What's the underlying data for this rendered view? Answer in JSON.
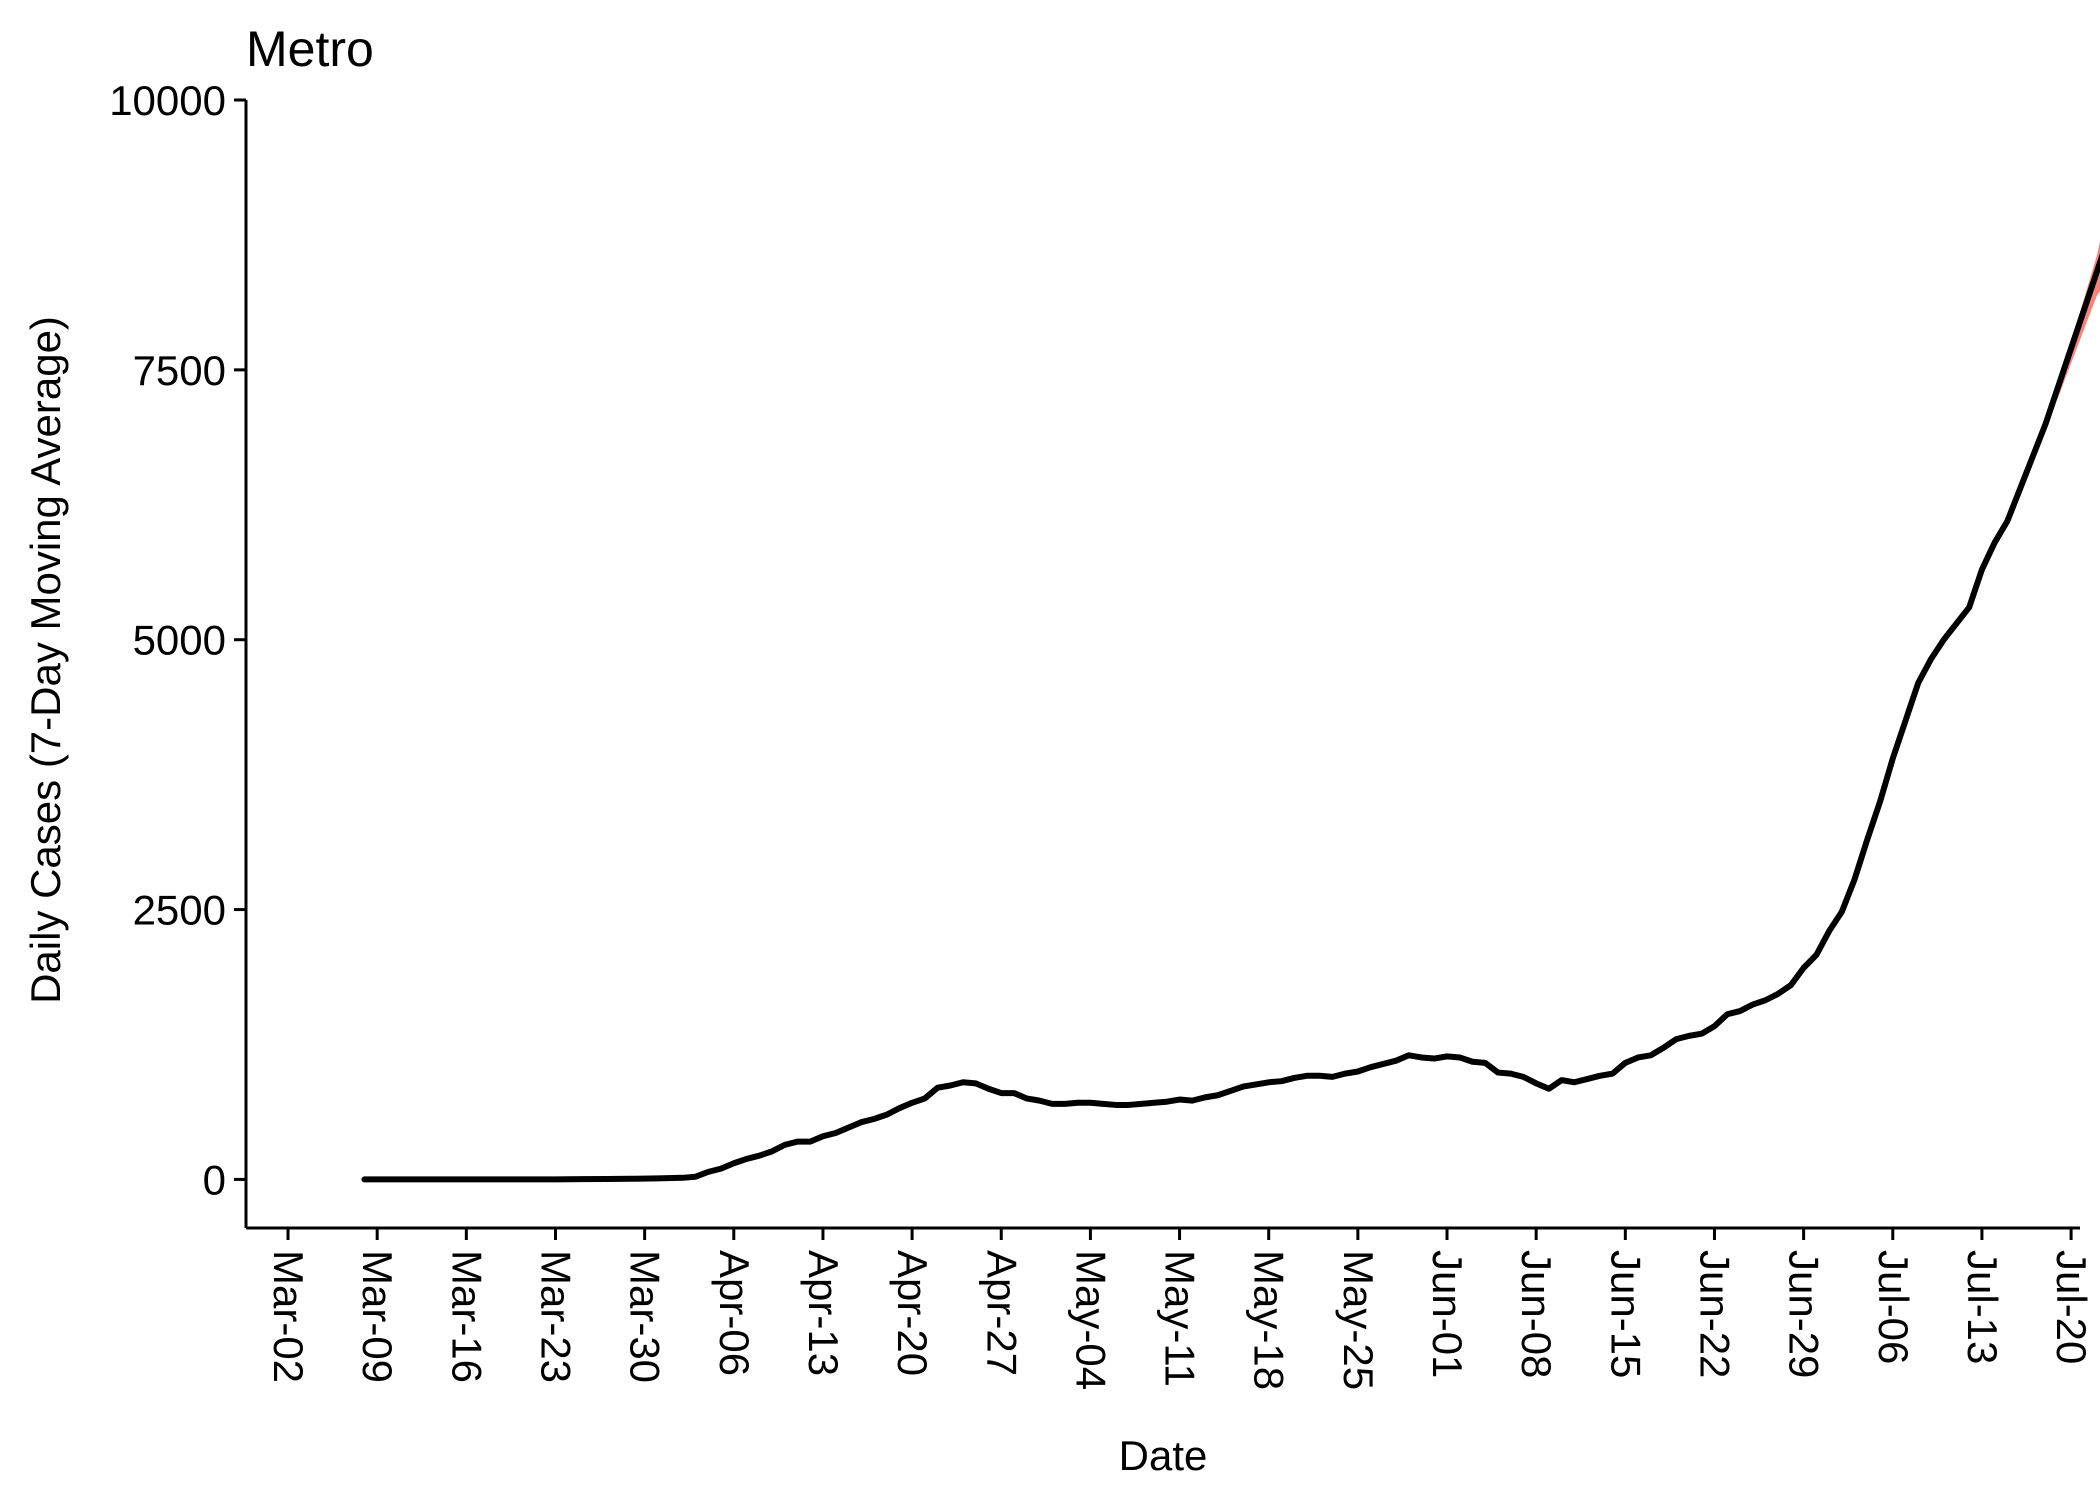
{
  "chart_data": {
    "type": "line",
    "title": "Metro",
    "xlabel": "Date",
    "ylabel": "Daily Cases (7-Day Moving Average)",
    "x_ticks": [
      "Mar-02",
      "Mar-09",
      "Mar-16",
      "Mar-23",
      "Mar-30",
      "Apr-06",
      "Apr-13",
      "Apr-20",
      "Apr-27",
      "May-04",
      "May-11",
      "May-18",
      "May-25",
      "Jun-01",
      "Jun-08",
      "Jun-15",
      "Jun-22",
      "Jun-29",
      "Jul-06",
      "Jul-13",
      "Jul-20"
    ],
    "y_ticks": [
      0,
      2500,
      5000,
      7500,
      10000
    ],
    "ylim": [
      -450,
      10000
    ],
    "xlim_days": [
      -3.3,
      140.7
    ],
    "grid": false,
    "legend": "none",
    "line_color": "#000000",
    "band_color": "#F8766D",
    "series": [
      {
        "values": [
          [
            6,
            0
          ],
          [
            10,
            0
          ],
          [
            14,
            0
          ],
          [
            18,
            0
          ],
          [
            21,
            0
          ],
          [
            23,
            3
          ],
          [
            25,
            4
          ],
          [
            27,
            6
          ],
          [
            29,
            10
          ],
          [
            31,
            15
          ],
          [
            32,
            25
          ],
          [
            33,
            70
          ],
          [
            34,
            100
          ],
          [
            35,
            150
          ],
          [
            36,
            190
          ],
          [
            37,
            220
          ],
          [
            38,
            260
          ],
          [
            39,
            320
          ],
          [
            40,
            350
          ],
          [
            41,
            350
          ],
          [
            42,
            400
          ],
          [
            43,
            430
          ],
          [
            44,
            480
          ],
          [
            45,
            530
          ],
          [
            46,
            560
          ],
          [
            47,
            600
          ],
          [
            48,
            660
          ],
          [
            49,
            710
          ],
          [
            50,
            750
          ],
          [
            51,
            850
          ],
          [
            52,
            870
          ],
          [
            53,
            900
          ],
          [
            54,
            890
          ],
          [
            55,
            840
          ],
          [
            56,
            800
          ],
          [
            57,
            800
          ],
          [
            58,
            750
          ],
          [
            59,
            730
          ],
          [
            60,
            700
          ],
          [
            61,
            700
          ],
          [
            62,
            710
          ],
          [
            63,
            710
          ],
          [
            64,
            700
          ],
          [
            65,
            690
          ],
          [
            66,
            690
          ],
          [
            67,
            700
          ],
          [
            68,
            710
          ],
          [
            69,
            720
          ],
          [
            70,
            740
          ],
          [
            71,
            730
          ],
          [
            72,
            760
          ],
          [
            73,
            780
          ],
          [
            74,
            820
          ],
          [
            75,
            860
          ],
          [
            76,
            880
          ],
          [
            77,
            900
          ],
          [
            78,
            910
          ],
          [
            79,
            940
          ],
          [
            80,
            960
          ],
          [
            81,
            960
          ],
          [
            82,
            950
          ],
          [
            83,
            980
          ],
          [
            84,
            1000
          ],
          [
            85,
            1040
          ],
          [
            86,
            1070
          ],
          [
            87,
            1100
          ],
          [
            88,
            1150
          ],
          [
            89,
            1130
          ],
          [
            90,
            1120
          ],
          [
            91,
            1140
          ],
          [
            92,
            1130
          ],
          [
            93,
            1090
          ],
          [
            94,
            1080
          ],
          [
            95,
            990
          ],
          [
            96,
            980
          ],
          [
            97,
            950
          ],
          [
            98,
            890
          ],
          [
            99,
            840
          ],
          [
            100,
            920
          ],
          [
            101,
            900
          ],
          [
            102,
            930
          ],
          [
            103,
            960
          ],
          [
            104,
            980
          ],
          [
            105,
            1080
          ],
          [
            106,
            1130
          ],
          [
            107,
            1150
          ],
          [
            108,
            1220
          ],
          [
            109,
            1300
          ],
          [
            110,
            1330
          ],
          [
            111,
            1350
          ],
          [
            112,
            1420
          ],
          [
            113,
            1530
          ],
          [
            114,
            1560
          ],
          [
            115,
            1620
          ],
          [
            116,
            1660
          ],
          [
            117,
            1720
          ],
          [
            118,
            1800
          ],
          [
            119,
            1960
          ],
          [
            120,
            2080
          ],
          [
            121,
            2300
          ],
          [
            122,
            2480
          ],
          [
            123,
            2780
          ],
          [
            124,
            3150
          ],
          [
            125,
            3500
          ],
          [
            126,
            3900
          ],
          [
            127,
            4250
          ],
          [
            128,
            4600
          ],
          [
            129,
            4820
          ],
          [
            130,
            5000
          ],
          [
            131,
            5150
          ],
          [
            132,
            5300
          ],
          [
            133,
            5650
          ],
          [
            134,
            5900
          ],
          [
            135,
            6100
          ],
          [
            136,
            6400
          ],
          [
            137,
            6700
          ],
          [
            138,
            7000
          ],
          [
            139,
            7350
          ],
          [
            140,
            7700
          ],
          [
            141,
            8050
          ],
          [
            142,
            8400
          ],
          [
            143,
            8750
          ],
          [
            144,
            9030
          ]
        ],
        "band": [
          [
            138,
            7000,
            7000
          ],
          [
            139,
            7250,
            7380
          ],
          [
            140,
            7560,
            7770
          ],
          [
            141,
            7870,
            8150
          ],
          [
            142,
            8180,
            8550
          ],
          [
            143,
            8360,
            9050
          ],
          [
            144,
            8550,
            9550
          ]
        ]
      }
    ]
  }
}
